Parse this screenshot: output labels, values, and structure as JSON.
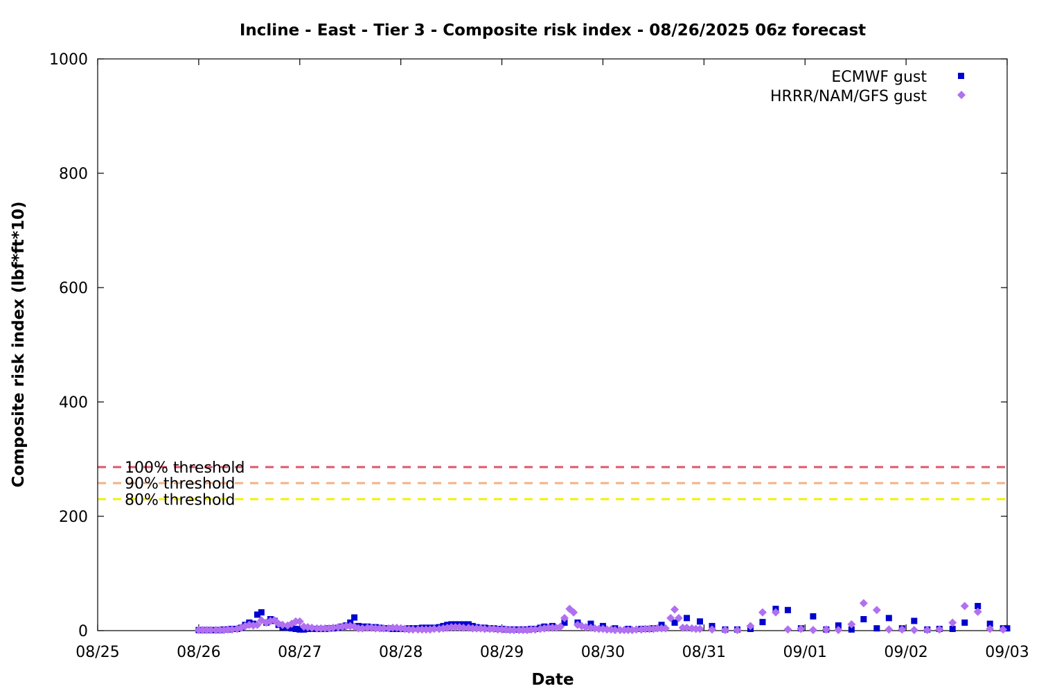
{
  "chart_data": {
    "type": "scatter",
    "title": "Incline - East - Tier 3 - Composite risk index - 08/26/2025 06z forecast",
    "xlabel": "Date",
    "ylabel": "Composite risk index (lbf*ft*10)",
    "x_unit": "days from 08/25 00z",
    "xlim": [
      0,
      9
    ],
    "ylim": [
      0,
      1000
    ],
    "x_ticks": [
      {
        "x": 0,
        "label": "08/25"
      },
      {
        "x": 1,
        "label": "08/26"
      },
      {
        "x": 2,
        "label": "08/27"
      },
      {
        "x": 3,
        "label": "08/28"
      },
      {
        "x": 4,
        "label": "08/29"
      },
      {
        "x": 5,
        "label": "08/30"
      },
      {
        "x": 6,
        "label": "08/31"
      },
      {
        "x": 7,
        "label": "09/01"
      },
      {
        "x": 8,
        "label": "09/02"
      },
      {
        "x": 9,
        "label": "09/03"
      }
    ],
    "y_ticks": [
      0,
      200,
      400,
      600,
      800,
      1000
    ],
    "legend_position": "top-right",
    "thresholds": [
      {
        "label": "100% threshold",
        "value": 286,
        "color": "#e0556b"
      },
      {
        "label": "90% threshold",
        "value": 258,
        "color": "#f4b183"
      },
      {
        "label": "80% threshold",
        "value": 230,
        "color": "#f5f000"
      }
    ],
    "series": [
      {
        "name": "ECMWF gust",
        "marker": "square",
        "color": "#0000d0",
        "points": [
          [
            1.0,
            1
          ],
          [
            1.04,
            1
          ],
          [
            1.08,
            1
          ],
          [
            1.12,
            1
          ],
          [
            1.17,
            1
          ],
          [
            1.21,
            1
          ],
          [
            1.25,
            2
          ],
          [
            1.29,
            2
          ],
          [
            1.33,
            3
          ],
          [
            1.38,
            3
          ],
          [
            1.42,
            5
          ],
          [
            1.46,
            10
          ],
          [
            1.5,
            14
          ],
          [
            1.54,
            12
          ],
          [
            1.58,
            28
          ],
          [
            1.62,
            32
          ],
          [
            1.67,
            14
          ],
          [
            1.71,
            20
          ],
          [
            1.75,
            17
          ],
          [
            1.79,
            10
          ],
          [
            1.83,
            6
          ],
          [
            1.88,
            5
          ],
          [
            1.92,
            4
          ],
          [
            1.96,
            3
          ],
          [
            2.0,
            2
          ],
          [
            2.04,
            2
          ],
          [
            2.08,
            3
          ],
          [
            2.12,
            3
          ],
          [
            2.17,
            3
          ],
          [
            2.21,
            3
          ],
          [
            2.25,
            3
          ],
          [
            2.29,
            4
          ],
          [
            2.33,
            4
          ],
          [
            2.38,
            5
          ],
          [
            2.42,
            7
          ],
          [
            2.46,
            9
          ],
          [
            2.5,
            14
          ],
          [
            2.54,
            23
          ],
          [
            2.58,
            8
          ],
          [
            2.62,
            7
          ],
          [
            2.67,
            7
          ],
          [
            2.71,
            6
          ],
          [
            2.75,
            6
          ],
          [
            2.79,
            5
          ],
          [
            2.83,
            4
          ],
          [
            2.88,
            4
          ],
          [
            2.92,
            3
          ],
          [
            2.96,
            3
          ],
          [
            3.0,
            3
          ],
          [
            3.04,
            3
          ],
          [
            3.08,
            4
          ],
          [
            3.12,
            4
          ],
          [
            3.17,
            4
          ],
          [
            3.21,
            5
          ],
          [
            3.25,
            5
          ],
          [
            3.29,
            5
          ],
          [
            3.33,
            5
          ],
          [
            3.38,
            6
          ],
          [
            3.42,
            8
          ],
          [
            3.46,
            10
          ],
          [
            3.5,
            11
          ],
          [
            3.54,
            11
          ],
          [
            3.58,
            11
          ],
          [
            3.62,
            11
          ],
          [
            3.67,
            11
          ],
          [
            3.71,
            8
          ],
          [
            3.75,
            6
          ],
          [
            3.79,
            5
          ],
          [
            3.83,
            5
          ],
          [
            3.88,
            4
          ],
          [
            3.92,
            4
          ],
          [
            3.96,
            3
          ],
          [
            4.0,
            3
          ],
          [
            4.04,
            2
          ],
          [
            4.08,
            2
          ],
          [
            4.12,
            2
          ],
          [
            4.17,
            2
          ],
          [
            4.21,
            2
          ],
          [
            4.25,
            2
          ],
          [
            4.29,
            3
          ],
          [
            4.33,
            3
          ],
          [
            4.38,
            5
          ],
          [
            4.42,
            7
          ],
          [
            4.5,
            8
          ],
          [
            4.62,
            14
          ],
          [
            4.75,
            14
          ],
          [
            4.88,
            12
          ],
          [
            5.0,
            8
          ],
          [
            5.12,
            4
          ],
          [
            5.25,
            3
          ],
          [
            5.38,
            3
          ],
          [
            5.46,
            3
          ],
          [
            5.5,
            4
          ],
          [
            5.58,
            10
          ],
          [
            5.71,
            14
          ],
          [
            5.83,
            22
          ],
          [
            5.96,
            16
          ],
          [
            6.08,
            8
          ],
          [
            6.21,
            2
          ],
          [
            6.33,
            2
          ],
          [
            6.46,
            3
          ],
          [
            6.58,
            15
          ],
          [
            6.71,
            38
          ],
          [
            6.83,
            36
          ],
          [
            6.96,
            4
          ],
          [
            7.08,
            25
          ],
          [
            7.21,
            2
          ],
          [
            7.33,
            9
          ],
          [
            7.46,
            2
          ],
          [
            7.58,
            20
          ],
          [
            7.71,
            4
          ],
          [
            7.83,
            22
          ],
          [
            7.96,
            4
          ],
          [
            8.08,
            17
          ],
          [
            8.21,
            2
          ],
          [
            8.33,
            3
          ],
          [
            8.46,
            3
          ],
          [
            8.58,
            14
          ],
          [
            8.71,
            43
          ],
          [
            8.83,
            12
          ],
          [
            8.96,
            4
          ],
          [
            9.0,
            4
          ]
        ]
      },
      {
        "name": "HRRR/NAM/GFS gust",
        "marker": "diamond",
        "color": "#b070f0",
        "points": [
          [
            1.0,
            1
          ],
          [
            1.04,
            1
          ],
          [
            1.08,
            1
          ],
          [
            1.12,
            1
          ],
          [
            1.17,
            1
          ],
          [
            1.21,
            1
          ],
          [
            1.25,
            1
          ],
          [
            1.29,
            2
          ],
          [
            1.33,
            2
          ],
          [
            1.38,
            3
          ],
          [
            1.42,
            5
          ],
          [
            1.46,
            8
          ],
          [
            1.5,
            10
          ],
          [
            1.54,
            9
          ],
          [
            1.58,
            10
          ],
          [
            1.62,
            18
          ],
          [
            1.67,
            14
          ],
          [
            1.71,
            17
          ],
          [
            1.75,
            18
          ],
          [
            1.79,
            12
          ],
          [
            1.83,
            10
          ],
          [
            1.88,
            9
          ],
          [
            1.92,
            12
          ],
          [
            1.96,
            16
          ],
          [
            2.0,
            16
          ],
          [
            2.04,
            7
          ],
          [
            2.08,
            6
          ],
          [
            2.12,
            5
          ],
          [
            2.17,
            4
          ],
          [
            2.21,
            4
          ],
          [
            2.25,
            4
          ],
          [
            2.29,
            4
          ],
          [
            2.33,
            5
          ],
          [
            2.38,
            6
          ],
          [
            2.42,
            7
          ],
          [
            2.46,
            8
          ],
          [
            2.5,
            8
          ],
          [
            2.54,
            7
          ],
          [
            2.58,
            4
          ],
          [
            2.62,
            4
          ],
          [
            2.67,
            5
          ],
          [
            2.71,
            5
          ],
          [
            2.75,
            4
          ],
          [
            2.79,
            4
          ],
          [
            2.83,
            4
          ],
          [
            2.88,
            4
          ],
          [
            2.92,
            5
          ],
          [
            2.96,
            5
          ],
          [
            3.0,
            4
          ],
          [
            3.04,
            3
          ],
          [
            3.08,
            2
          ],
          [
            3.12,
            2
          ],
          [
            3.17,
            2
          ],
          [
            3.21,
            2
          ],
          [
            3.25,
            2
          ],
          [
            3.29,
            2
          ],
          [
            3.33,
            3
          ],
          [
            3.38,
            3
          ],
          [
            3.42,
            4
          ],
          [
            3.46,
            5
          ],
          [
            3.5,
            6
          ],
          [
            3.54,
            6
          ],
          [
            3.58,
            6
          ],
          [
            3.62,
            5
          ],
          [
            3.67,
            5
          ],
          [
            3.71,
            4
          ],
          [
            3.75,
            4
          ],
          [
            3.79,
            4
          ],
          [
            3.83,
            3
          ],
          [
            3.88,
            3
          ],
          [
            3.92,
            3
          ],
          [
            3.96,
            2
          ],
          [
            4.0,
            2
          ],
          [
            4.04,
            2
          ],
          [
            4.08,
            1
          ],
          [
            4.12,
            1
          ],
          [
            4.17,
            1
          ],
          [
            4.21,
            1
          ],
          [
            4.25,
            1
          ],
          [
            4.29,
            2
          ],
          [
            4.33,
            2
          ],
          [
            4.38,
            3
          ],
          [
            4.42,
            4
          ],
          [
            4.46,
            5
          ],
          [
            4.5,
            5
          ],
          [
            4.54,
            5
          ],
          [
            4.58,
            7
          ],
          [
            4.62,
            22
          ],
          [
            4.67,
            38
          ],
          [
            4.71,
            32
          ],
          [
            4.75,
            10
          ],
          [
            4.79,
            8
          ],
          [
            4.83,
            6
          ],
          [
            4.88,
            5
          ],
          [
            4.92,
            4
          ],
          [
            4.96,
            3
          ],
          [
            5.0,
            3
          ],
          [
            5.04,
            2
          ],
          [
            5.08,
            2
          ],
          [
            5.12,
            1
          ],
          [
            5.17,
            1
          ],
          [
            5.21,
            1
          ],
          [
            5.25,
            1
          ],
          [
            5.29,
            1
          ],
          [
            5.33,
            2
          ],
          [
            5.38,
            2
          ],
          [
            5.42,
            3
          ],
          [
            5.46,
            3
          ],
          [
            5.5,
            3
          ],
          [
            5.54,
            4
          ],
          [
            5.58,
            4
          ],
          [
            5.62,
            4
          ],
          [
            5.67,
            22
          ],
          [
            5.71,
            37
          ],
          [
            5.75,
            22
          ],
          [
            5.79,
            5
          ],
          [
            5.83,
            5
          ],
          [
            5.88,
            4
          ],
          [
            5.92,
            3
          ],
          [
            5.96,
            3
          ],
          [
            6.08,
            2
          ],
          [
            6.21,
            1
          ],
          [
            6.33,
            1
          ],
          [
            6.46,
            8
          ],
          [
            6.58,
            32
          ],
          [
            6.71,
            32
          ],
          [
            6.83,
            2
          ],
          [
            6.96,
            3
          ],
          [
            7.08,
            1
          ],
          [
            7.21,
            2
          ],
          [
            7.33,
            1
          ],
          [
            7.46,
            11
          ],
          [
            7.58,
            48
          ],
          [
            7.71,
            36
          ],
          [
            7.83,
            2
          ],
          [
            7.96,
            2
          ],
          [
            8.08,
            1
          ],
          [
            8.21,
            1
          ],
          [
            8.33,
            2
          ],
          [
            8.46,
            14
          ],
          [
            8.58,
            43
          ],
          [
            8.71,
            33
          ],
          [
            8.83,
            3
          ],
          [
            8.96,
            2
          ]
        ]
      }
    ]
  }
}
